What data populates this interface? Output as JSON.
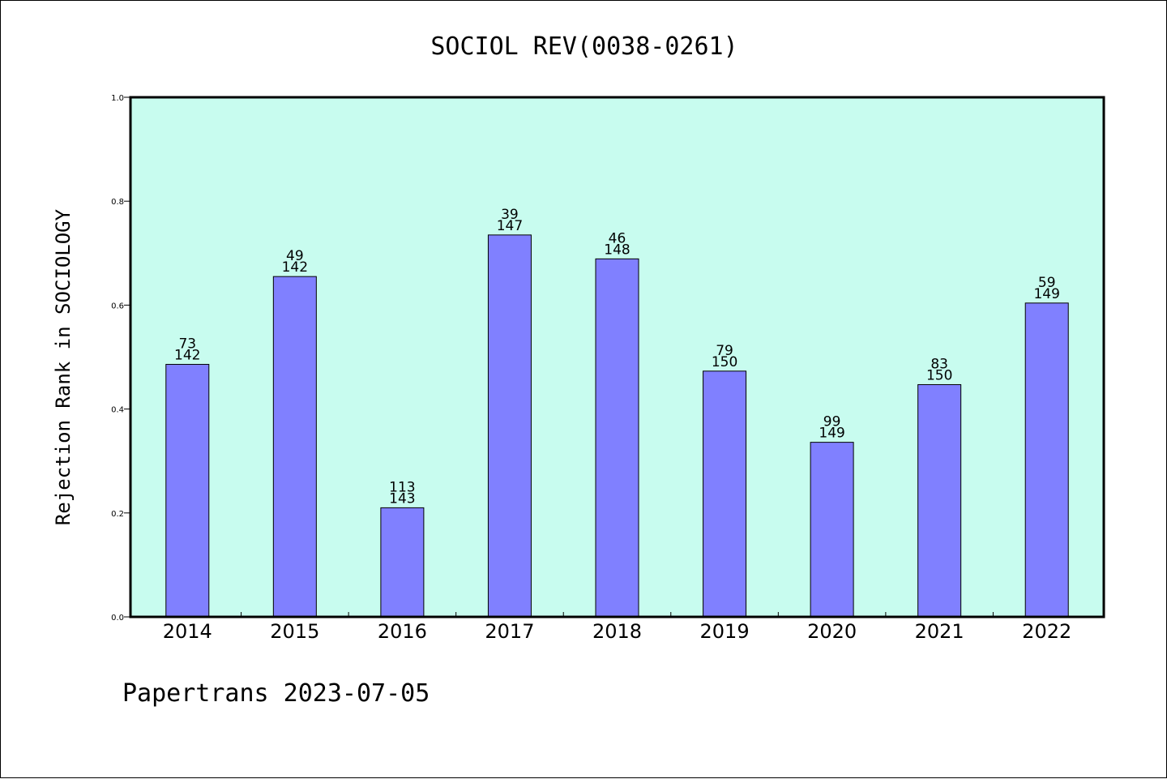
{
  "chart_data": {
    "type": "bar",
    "title": "SOCIOL REV(0038-0261)",
    "ylabel": "Rejection Rank in SOCIOLOGY",
    "xlabel": "",
    "categories": [
      "2014",
      "2015",
      "2016",
      "2017",
      "2018",
      "2019",
      "2020",
      "2021",
      "2022"
    ],
    "values": [
      0.486,
      0.655,
      0.21,
      0.735,
      0.689,
      0.473,
      0.336,
      0.447,
      0.604
    ],
    "ranks": [
      "73",
      "49",
      "113",
      "39",
      "46",
      "79",
      "99",
      "83",
      "59"
    ],
    "totals": [
      "142",
      "142",
      "143",
      "147",
      "148",
      "150",
      "149",
      "150",
      "149"
    ],
    "ylim": [
      0,
      1.0
    ],
    "yticks": [
      "0.0",
      "0.2",
      "0.4",
      "0.6",
      "0.8",
      "1.0"
    ],
    "grid": false,
    "colors": {
      "bar": "#8080ff",
      "plot_bg": "#c8fcef",
      "axis": "#000000"
    }
  },
  "footer": "Papertrans 2023-07-05"
}
